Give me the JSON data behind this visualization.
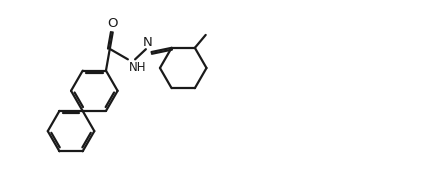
{
  "bg_color": "#ffffff",
  "line_color": "#1a1a1a",
  "line_width": 1.6,
  "text_color": "#1a1a1a",
  "font_size": 8.5,
  "figsize": [
    4.23,
    1.94
  ],
  "dpi": 100,
  "xlim": [
    0.0,
    10.5
  ],
  "ylim": [
    0.0,
    4.8
  ]
}
